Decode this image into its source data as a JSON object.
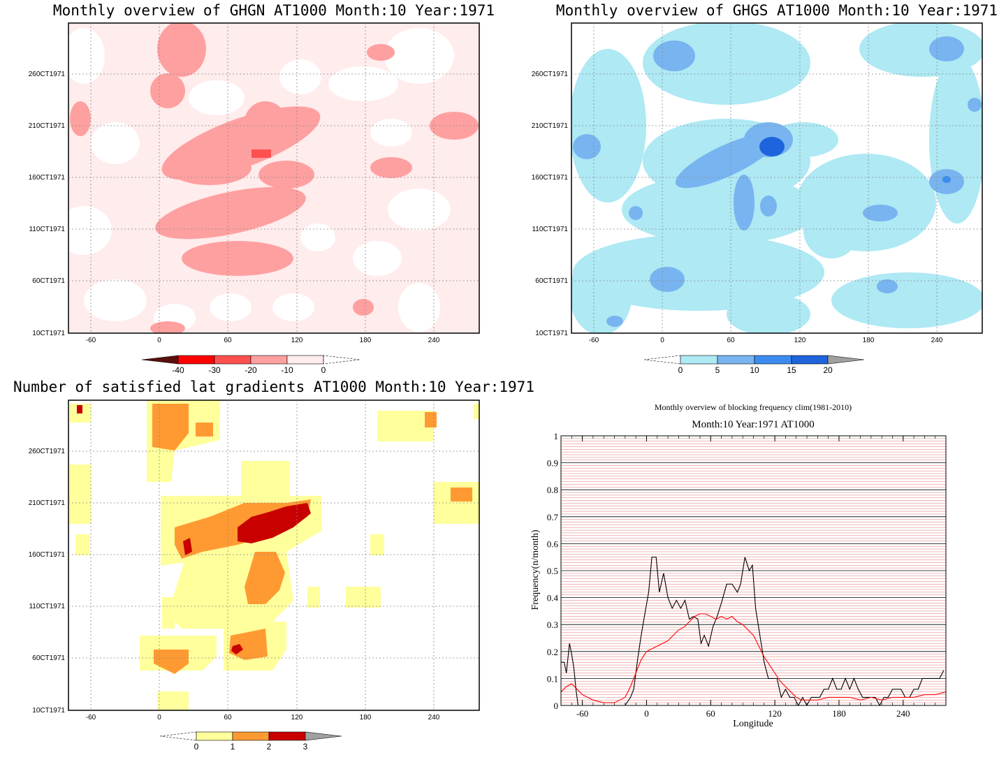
{
  "panels": {
    "ghgn": {
      "title": "Monthly overview of GHGN AT1000 Month:10 Year:1971",
      "colorbar": {
        "labels": [
          "-40",
          "-30",
          "-20",
          "-10",
          "0"
        ],
        "colors": [
          "#5a0f0f",
          "#ff0000",
          "#ff5050",
          "#ffa0a0",
          "#ffecec"
        ]
      }
    },
    "ghgs": {
      "title": "Monthly overview of GHGS AT1000 Month:10 Year:1971",
      "colorbar": {
        "labels": [
          "0",
          "5",
          "10",
          "15",
          "20"
        ],
        "colors": [
          "#aee9f4",
          "#78b4f0",
          "#3c8cf0",
          "#1e64dc",
          "#a0a0a0"
        ]
      }
    },
    "latgrad": {
      "title": "Number of satisfied lat gradients AT1000 Month:10 Year:1971",
      "colorbar": {
        "labels": [
          "0",
          "1",
          "2",
          "3"
        ],
        "colors": [
          "#ffff9c",
          "#ff9a32",
          "#c80000",
          "#a0a0a0"
        ]
      }
    },
    "shared_axes": {
      "x_ticks": [
        "-60",
        "0",
        "60",
        "120",
        "180",
        "240"
      ],
      "y_ticks": [
        "260CT1971",
        "210CT1971",
        "160CT1971",
        "110CT1971",
        "60CT1971",
        "10CT1971"
      ]
    }
  },
  "chart_data": {
    "type": "line",
    "title": "Monthly overview of blocking frequency clim(1981-2010)",
    "subtitle": "Month:10 Year:1971  AT1000",
    "xlabel": "Longitude",
    "ylabel": "Frequency(n/month)",
    "xlim": [
      -80,
      280
    ],
    "ylim": [
      0,
      1
    ],
    "x_ticks": [
      "-60",
      "0",
      "60",
      "120",
      "180",
      "240"
    ],
    "y_ticks": [
      "0",
      "0.1",
      "0.2",
      "0.3",
      "0.4",
      "0.5",
      "0.6",
      "0.7",
      "0.8",
      "0.9",
      "1"
    ],
    "grid": true,
    "series": [
      {
        "color": "#000000",
        "points": [
          [
            -80,
            0.16
          ],
          [
            -77,
            0.16
          ],
          [
            -75,
            0.12
          ],
          [
            -72,
            0.23
          ],
          [
            -70,
            0.19
          ],
          [
            -68,
            0.14
          ],
          [
            -66,
            0.06
          ],
          [
            -64,
            0.0
          ],
          [
            -60,
            0.0
          ],
          [
            -40,
            0.0
          ],
          [
            -20,
            0.0
          ],
          [
            -15,
            0.03
          ],
          [
            -12,
            0.06
          ],
          [
            -8,
            0.18
          ],
          [
            -5,
            0.26
          ],
          [
            -2,
            0.33
          ],
          [
            2,
            0.42
          ],
          [
            5,
            0.55
          ],
          [
            9,
            0.55
          ],
          [
            12,
            0.42
          ],
          [
            16,
            0.49
          ],
          [
            20,
            0.4
          ],
          [
            24,
            0.36
          ],
          [
            28,
            0.39
          ],
          [
            32,
            0.36
          ],
          [
            36,
            0.39
          ],
          [
            40,
            0.32
          ],
          [
            44,
            0.33
          ],
          [
            48,
            0.32
          ],
          [
            51,
            0.23
          ],
          [
            54,
            0.26
          ],
          [
            58,
            0.22
          ],
          [
            62,
            0.29
          ],
          [
            66,
            0.33
          ],
          [
            70,
            0.38
          ],
          [
            75,
            0.45
          ],
          [
            80,
            0.45
          ],
          [
            85,
            0.42
          ],
          [
            88,
            0.45
          ],
          [
            92,
            0.55
          ],
          [
            96,
            0.5
          ],
          [
            99,
            0.52
          ],
          [
            102,
            0.36
          ],
          [
            106,
            0.26
          ],
          [
            110,
            0.16
          ],
          [
            114,
            0.1
          ],
          [
            118,
            0.1
          ],
          [
            122,
            0.1
          ],
          [
            126,
            0.03
          ],
          [
            130,
            0.06
          ],
          [
            134,
            0.03
          ],
          [
            138,
            0.03
          ],
          [
            142,
            0.0
          ],
          [
            146,
            0.03
          ],
          [
            150,
            0.0
          ],
          [
            154,
            0.03
          ],
          [
            158,
            0.03
          ],
          [
            162,
            0.03
          ],
          [
            166,
            0.06
          ],
          [
            170,
            0.06
          ],
          [
            174,
            0.1
          ],
          [
            178,
            0.06
          ],
          [
            182,
            0.06
          ],
          [
            186,
            0.1
          ],
          [
            190,
            0.06
          ],
          [
            194,
            0.1
          ],
          [
            198,
            0.06
          ],
          [
            202,
            0.03
          ],
          [
            206,
            0.03
          ],
          [
            210,
            0.03
          ],
          [
            214,
            0.03
          ],
          [
            218,
            0.0
          ],
          [
            222,
            0.03
          ],
          [
            226,
            0.03
          ],
          [
            230,
            0.06
          ],
          [
            234,
            0.06
          ],
          [
            238,
            0.06
          ],
          [
            242,
            0.03
          ],
          [
            246,
            0.03
          ],
          [
            250,
            0.06
          ],
          [
            254,
            0.06
          ],
          [
            258,
            0.1
          ],
          [
            262,
            0.1
          ],
          [
            266,
            0.1
          ],
          [
            270,
            0.1
          ],
          [
            274,
            0.1
          ],
          [
            278,
            0.13
          ]
        ]
      },
      {
        "color": "#ff0000",
        "points": [
          [
            -80,
            0.05
          ],
          [
            -75,
            0.07
          ],
          [
            -70,
            0.08
          ],
          [
            -65,
            0.06
          ],
          [
            -60,
            0.04
          ],
          [
            -50,
            0.02
          ],
          [
            -40,
            0.01
          ],
          [
            -30,
            0.01
          ],
          [
            -20,
            0.03
          ],
          [
            -15,
            0.07
          ],
          [
            -10,
            0.12
          ],
          [
            -5,
            0.17
          ],
          [
            0,
            0.2
          ],
          [
            5,
            0.21
          ],
          [
            10,
            0.22
          ],
          [
            15,
            0.23
          ],
          [
            20,
            0.24
          ],
          [
            25,
            0.26
          ],
          [
            30,
            0.28
          ],
          [
            35,
            0.29
          ],
          [
            40,
            0.31
          ],
          [
            45,
            0.33
          ],
          [
            50,
            0.34
          ],
          [
            55,
            0.34
          ],
          [
            60,
            0.33
          ],
          [
            65,
            0.32
          ],
          [
            70,
            0.33
          ],
          [
            75,
            0.32
          ],
          [
            80,
            0.33
          ],
          [
            85,
            0.31
          ],
          [
            90,
            0.3
          ],
          [
            95,
            0.28
          ],
          [
            100,
            0.26
          ],
          [
            105,
            0.22
          ],
          [
            110,
            0.18
          ],
          [
            115,
            0.15
          ],
          [
            120,
            0.12
          ],
          [
            125,
            0.09
          ],
          [
            130,
            0.07
          ],
          [
            135,
            0.05
          ],
          [
            140,
            0.03
          ],
          [
            145,
            0.02
          ],
          [
            150,
            0.02
          ],
          [
            155,
            0.02
          ],
          [
            160,
            0.02
          ],
          [
            170,
            0.03
          ],
          [
            180,
            0.03
          ],
          [
            190,
            0.03
          ],
          [
            200,
            0.02
          ],
          [
            210,
            0.03
          ],
          [
            220,
            0.02
          ],
          [
            230,
            0.03
          ],
          [
            240,
            0.03
          ],
          [
            250,
            0.03
          ],
          [
            260,
            0.04
          ],
          [
            270,
            0.04
          ],
          [
            280,
            0.05
          ]
        ]
      }
    ]
  }
}
